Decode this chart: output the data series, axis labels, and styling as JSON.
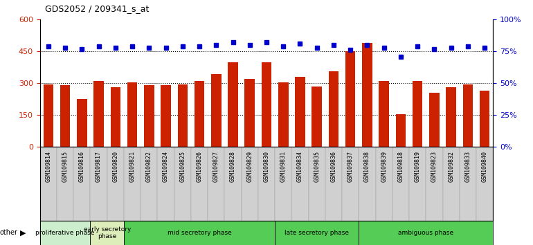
{
  "title": "GDS2052 / 209341_s_at",
  "samples": [
    "GSM109814",
    "GSM109815",
    "GSM109816",
    "GSM109817",
    "GSM109820",
    "GSM109821",
    "GSM109822",
    "GSM109824",
    "GSM109825",
    "GSM109826",
    "GSM109827",
    "GSM109828",
    "GSM109829",
    "GSM109830",
    "GSM109831",
    "GSM109834",
    "GSM109835",
    "GSM109836",
    "GSM109837",
    "GSM109838",
    "GSM109839",
    "GSM109818",
    "GSM109819",
    "GSM109823",
    "GSM109832",
    "GSM109833",
    "GSM109840"
  ],
  "counts": [
    295,
    290,
    225,
    310,
    283,
    305,
    290,
    290,
    295,
    310,
    345,
    400,
    320,
    400,
    305,
    330,
    285,
    355,
    450,
    490,
    310,
    155,
    310,
    255,
    280,
    295,
    265
  ],
  "percentiles": [
    79,
    78,
    77,
    79,
    78,
    79,
    78,
    78,
    79,
    79,
    80,
    82,
    80,
    82,
    79,
    81,
    78,
    80,
    76,
    80,
    78,
    71,
    79,
    77,
    78,
    79,
    78
  ],
  "ylim_left": [
    0,
    600
  ],
  "ylim_right": [
    0,
    100
  ],
  "yticks_left": [
    0,
    150,
    300,
    450,
    600
  ],
  "yticks_right": [
    0,
    25,
    50,
    75,
    100
  ],
  "bar_color": "#cc2200",
  "dot_color": "#0000cc",
  "tick_bg_color": "#d0d0d0",
  "plot_bg_color": "#ffffff",
  "percentile_scale": 6.0,
  "phases": [
    {
      "label": "proliferative phase",
      "start": 0,
      "end": 3,
      "color": "#cceecc"
    },
    {
      "label": "early secretory\nphase",
      "start": 3,
      "end": 5,
      "color": "#ddeebb"
    },
    {
      "label": "mid secretory phase",
      "start": 5,
      "end": 14,
      "color": "#55cc55"
    },
    {
      "label": "late secretory phase",
      "start": 14,
      "end": 19,
      "color": "#55cc55"
    },
    {
      "label": "ambiguous phase",
      "start": 19,
      "end": 27,
      "color": "#55cc55"
    }
  ]
}
